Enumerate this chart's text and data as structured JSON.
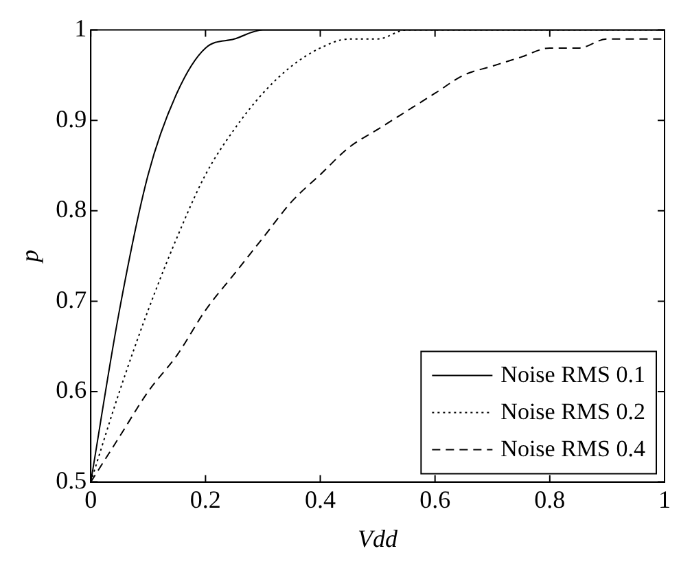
{
  "chart_data": {
    "type": "line",
    "xlabel": "Vdd",
    "ylabel": "p",
    "xlim": [
      0,
      1
    ],
    "ylim": [
      0.5,
      1
    ],
    "xticks": [
      0,
      0.2,
      0.4,
      0.6,
      0.8,
      1
    ],
    "yticks": [
      0.5,
      0.6,
      0.7,
      0.8,
      0.9,
      1
    ],
    "legend": "bottom right",
    "marker": "none",
    "x": [
      0,
      0.05,
      0.1,
      0.15,
      0.2,
      0.25,
      0.3,
      0.35,
      0.4,
      0.45,
      0.5,
      0.55,
      0.6,
      0.65,
      0.7,
      0.75,
      0.8,
      0.85,
      0.9,
      0.95,
      1
    ],
    "series": [
      {
        "name": "Noise RMS 0.1",
        "color": "#000000",
        "line_style": "solid",
        "values": [
          0.5,
          0.69,
          0.84,
          0.93,
          0.98,
          0.99,
          1,
          1,
          1,
          1,
          1,
          1,
          1,
          1,
          1,
          1,
          1,
          1,
          1,
          1,
          1
        ]
      },
      {
        "name": "Noise RMS 0.2",
        "color": "#000000",
        "line_style": "dotted",
        "values": [
          0.5,
          0.6,
          0.69,
          0.77,
          0.84,
          0.89,
          0.93,
          0.96,
          0.98,
          0.99,
          0.99,
          1,
          1,
          1,
          1,
          1,
          1,
          1,
          1,
          1,
          1
        ]
      },
      {
        "name": "Noise RMS 0.4",
        "color": "#000000",
        "line_style": "dashed",
        "values": [
          0.5,
          0.55,
          0.6,
          0.64,
          0.69,
          0.73,
          0.77,
          0.81,
          0.84,
          0.87,
          0.89,
          0.91,
          0.93,
          0.95,
          0.96,
          0.97,
          0.98,
          0.98,
          0.99,
          0.99,
          0.99
        ]
      }
    ]
  }
}
